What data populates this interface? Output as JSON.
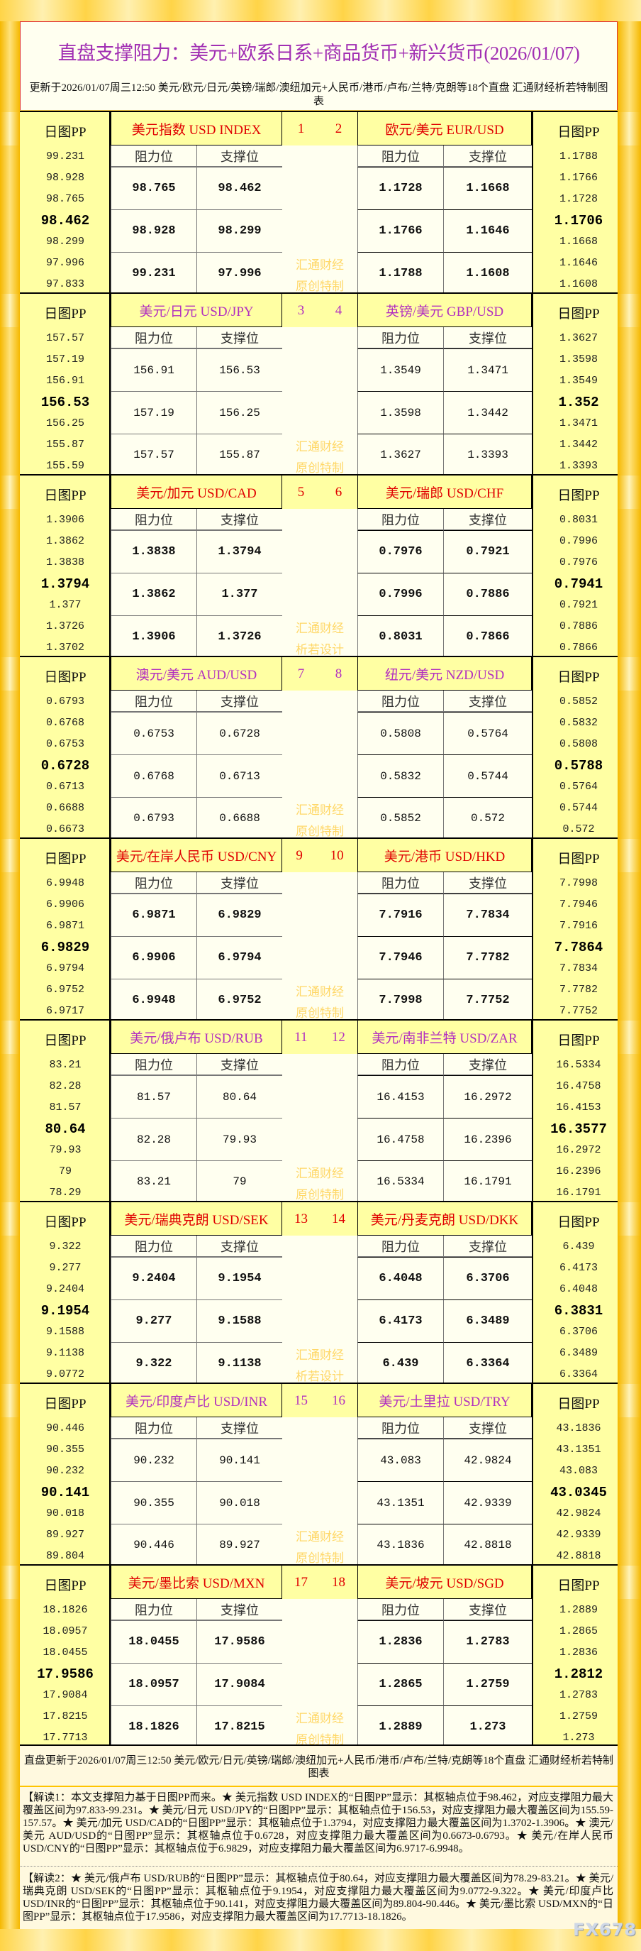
{
  "header": {
    "title": "直盘支撑阻力：美元+欧系日系+商品货币+新兴货币(2026/01/07)",
    "update": "更新于2026/01/07周三12:50 美元/欧元/日元/英镑/瑞郎/澳纽加元+人民币/港币/卢布/兰特/克朗等18个直盘 汇通财经析若特制图表"
  },
  "labels": {
    "pp": "日图PP",
    "resistance": "阻力位",
    "support": "支撑位"
  },
  "colors": {
    "odd_title": "#e00000",
    "even_title": "#b22fc0",
    "watermark": "#ffd766",
    "cell_bg": "#fffff0",
    "header_bg": "#ffffa3"
  },
  "blocks": [
    {
      "nums": [
        "1",
        "2"
      ],
      "watermark": [
        "汇通财经",
        "原创特制"
      ],
      "left": {
        "title": "美元指数 USD INDEX",
        "pp": [
          "99.231",
          "98.928",
          "98.765",
          "98.462",
          "98.299",
          "97.996",
          "97.833"
        ],
        "resistance": [
          "98.765",
          "98.928",
          "99.231"
        ],
        "support": [
          "98.462",
          "98.299",
          "97.996"
        ]
      },
      "right": {
        "title": "欧元/美元 EUR/USD",
        "pp": [
          "1.1788",
          "1.1766",
          "1.1728",
          "1.1706",
          "1.1668",
          "1.1646",
          "1.1608"
        ],
        "resistance": [
          "1.1728",
          "1.1766",
          "1.1788"
        ],
        "support": [
          "1.1668",
          "1.1646",
          "1.1608"
        ]
      }
    },
    {
      "nums": [
        "3",
        "4"
      ],
      "watermark": [
        "汇通财经",
        "原创特制"
      ],
      "left": {
        "title": "美元/日元 USD/JPY",
        "pp": [
          "157.57",
          "157.19",
          "156.91",
          "156.53",
          "156.25",
          "155.87",
          "155.59"
        ],
        "resistance": [
          "156.91",
          "157.19",
          "157.57"
        ],
        "support": [
          "156.53",
          "156.25",
          "155.87"
        ]
      },
      "right": {
        "title": "英镑/美元 GBP/USD",
        "pp": [
          "1.3627",
          "1.3598",
          "1.3549",
          "1.352",
          "1.3471",
          "1.3442",
          "1.3393"
        ],
        "resistance": [
          "1.3549",
          "1.3598",
          "1.3627"
        ],
        "support": [
          "1.3471",
          "1.3442",
          "1.3393"
        ]
      }
    },
    {
      "nums": [
        "5",
        "6"
      ],
      "watermark": [
        "汇通财经",
        "析若设计"
      ],
      "left": {
        "title": "美元/加元 USD/CAD",
        "pp": [
          "1.3906",
          "1.3862",
          "1.3838",
          "1.3794",
          "1.377",
          "1.3726",
          "1.3702"
        ],
        "resistance": [
          "1.3838",
          "1.3862",
          "1.3906"
        ],
        "support": [
          "1.3794",
          "1.377",
          "1.3726"
        ]
      },
      "right": {
        "title": "美元/瑞郎 USD/CHF",
        "pp": [
          "0.8031",
          "0.7996",
          "0.7976",
          "0.7941",
          "0.7921",
          "0.7886",
          "0.7866"
        ],
        "resistance": [
          "0.7976",
          "0.7996",
          "0.8031"
        ],
        "support": [
          "0.7921",
          "0.7886",
          "0.7866"
        ]
      }
    },
    {
      "nums": [
        "7",
        "8"
      ],
      "watermark": [
        "汇通财经",
        "原创特制"
      ],
      "left": {
        "title": "澳元/美元 AUD/USD",
        "pp": [
          "0.6793",
          "0.6768",
          "0.6753",
          "0.6728",
          "0.6713",
          "0.6688",
          "0.6673"
        ],
        "resistance": [
          "0.6753",
          "0.6768",
          "0.6793"
        ],
        "support": [
          "0.6728",
          "0.6713",
          "0.6688"
        ]
      },
      "right": {
        "title": "纽元/美元 NZD/USD",
        "pp": [
          "0.5852",
          "0.5832",
          "0.5808",
          "0.5788",
          "0.5764",
          "0.5744",
          "0.572"
        ],
        "resistance": [
          "0.5808",
          "0.5832",
          "0.5852"
        ],
        "support": [
          "0.5764",
          "0.5744",
          "0.572"
        ]
      }
    },
    {
      "nums": [
        "9",
        "10"
      ],
      "watermark": [
        "汇通财经",
        "原创特制"
      ],
      "left": {
        "title": "美元/在岸人民币 USD/CNY",
        "pp": [
          "6.9948",
          "6.9906",
          "6.9871",
          "6.9829",
          "6.9794",
          "6.9752",
          "6.9717"
        ],
        "resistance": [
          "6.9871",
          "6.9906",
          "6.9948"
        ],
        "support": [
          "6.9829",
          "6.9794",
          "6.9752"
        ]
      },
      "right": {
        "title": "美元/港币 USD/HKD",
        "pp": [
          "7.7998",
          "7.7946",
          "7.7916",
          "7.7864",
          "7.7834",
          "7.7782",
          "7.7752"
        ],
        "resistance": [
          "7.7916",
          "7.7946",
          "7.7998"
        ],
        "support": [
          "7.7834",
          "7.7782",
          "7.7752"
        ]
      }
    },
    {
      "nums": [
        "11",
        "12"
      ],
      "watermark": [
        "汇通财经",
        "原创特制"
      ],
      "left": {
        "title": "美元/俄卢布 USD/RUB",
        "pp": [
          "83.21",
          "82.28",
          "81.57",
          "80.64",
          "79.93",
          "79",
          "78.29"
        ],
        "resistance": [
          "81.57",
          "82.28",
          "83.21"
        ],
        "support": [
          "80.64",
          "79.93",
          "79"
        ]
      },
      "right": {
        "title": "美元/南非兰特 USD/ZAR",
        "pp": [
          "16.5334",
          "16.4758",
          "16.4153",
          "16.3577",
          "16.2972",
          "16.2396",
          "16.1791"
        ],
        "resistance": [
          "16.4153",
          "16.4758",
          "16.5334"
        ],
        "support": [
          "16.2972",
          "16.2396",
          "16.1791"
        ]
      }
    },
    {
      "nums": [
        "13",
        "14"
      ],
      "watermark": [
        "汇通财经",
        "析若设计"
      ],
      "left": {
        "title": "美元/瑞典克朗 USD/SEK",
        "pp": [
          "9.322",
          "9.277",
          "9.2404",
          "9.1954",
          "9.1588",
          "9.1138",
          "9.0772"
        ],
        "resistance": [
          "9.2404",
          "9.277",
          "9.322"
        ],
        "support": [
          "9.1954",
          "9.1588",
          "9.1138"
        ]
      },
      "right": {
        "title": "美元/丹麦克朗 USD/DKK",
        "pp": [
          "6.439",
          "6.4173",
          "6.4048",
          "6.3831",
          "6.3706",
          "6.3489",
          "6.3364"
        ],
        "resistance": [
          "6.4048",
          "6.4173",
          "6.439"
        ],
        "support": [
          "6.3706",
          "6.3489",
          "6.3364"
        ]
      }
    },
    {
      "nums": [
        "15",
        "16"
      ],
      "watermark": [
        "汇通财经",
        "原创特制"
      ],
      "left": {
        "title": "美元/印度卢比 USD/INR",
        "pp": [
          "90.446",
          "90.355",
          "90.232",
          "90.141",
          "90.018",
          "89.927",
          "89.804"
        ],
        "resistance": [
          "90.232",
          "90.355",
          "90.446"
        ],
        "support": [
          "90.141",
          "90.018",
          "89.927"
        ]
      },
      "right": {
        "title": "美元/土里拉 USD/TRY",
        "pp": [
          "43.1836",
          "43.1351",
          "43.083",
          "43.0345",
          "42.9824",
          "42.9339",
          "42.8818"
        ],
        "resistance": [
          "43.083",
          "43.1351",
          "43.1836"
        ],
        "support": [
          "42.9824",
          "42.9339",
          "42.8818"
        ]
      }
    },
    {
      "nums": [
        "17",
        "18"
      ],
      "watermark": [
        "汇通财经",
        "原创特制"
      ],
      "left": {
        "title": "美元/墨比索 USD/MXN",
        "pp": [
          "18.1826",
          "18.0957",
          "18.0455",
          "17.9586",
          "17.9084",
          "17.8215",
          "17.7713"
        ],
        "resistance": [
          "18.0455",
          "18.0957",
          "18.1826"
        ],
        "support": [
          "17.9586",
          "17.9084",
          "17.8215"
        ]
      },
      "right": {
        "title": "美元/坡元 USD/SGD",
        "pp": [
          "1.2889",
          "1.2865",
          "1.2836",
          "1.2812",
          "1.2783",
          "1.2759",
          "1.273"
        ],
        "resistance": [
          "1.2836",
          "1.2865",
          "1.2889"
        ],
        "support": [
          "1.2783",
          "1.2759",
          "1.273"
        ]
      }
    }
  ],
  "footer": {
    "update": "直盘更新于2026/01/07周三12:50 美元/欧元/日元/英镑/瑞郎/澳纽加元+人民币/港币/卢布/兰特/克朗等18个直盘 汇通财经析若特制图表",
    "note1": "【解读1：本文支撑阻力基于日图PP而来。★ 美元指数 USD INDEX的“日图PP”显示：其枢轴点位于98.462，对应支撑阻力最大覆盖区间为97.833-99.231。★ 美元/日元 USD/JPY的“日图PP”显示：其枢轴点位于156.53，对应支撑阻力最大覆盖区间为155.59-157.57。★ 美元/加元 USD/CAD的“日图PP”显示：其枢轴点位于1.3794，对应支撑阻力最大覆盖区间为1.3702-1.3906。★ 澳元/美元 AUD/USD的“日图PP”显示：其枢轴点位于0.6728，对应支撑阻力最大覆盖区间为0.6673-0.6793。★ 美元/在岸人民币 USD/CNY的“日图PP”显示：其枢轴点位于6.9829，对应支撑阻力最大覆盖区间为6.9717-6.9948。",
    "note2": "【解读2：★ 美元/俄卢布 USD/RUB的“日图PP”显示：其枢轴点位于80.64，对应支撑阻力最大覆盖区间为78.29-83.21。★ 美元/瑞典克朗 USD/SEK的“日图PP”显示：其枢轴点位于9.1954，对应支撑阻力最大覆盖区间为9.0772-9.322。★ 美元/印度卢比 USD/INR的“日图PP”显示：其枢轴点位于90.141，对应支撑阻力最大覆盖区间为89.804-90.446。★ 美元/墨比索 USD/MXN的“日图PP”显示：其枢轴点位于17.9586，对应支撑阻力最大覆盖区间为17.7713-18.1826。",
    "logo": "FX678"
  }
}
